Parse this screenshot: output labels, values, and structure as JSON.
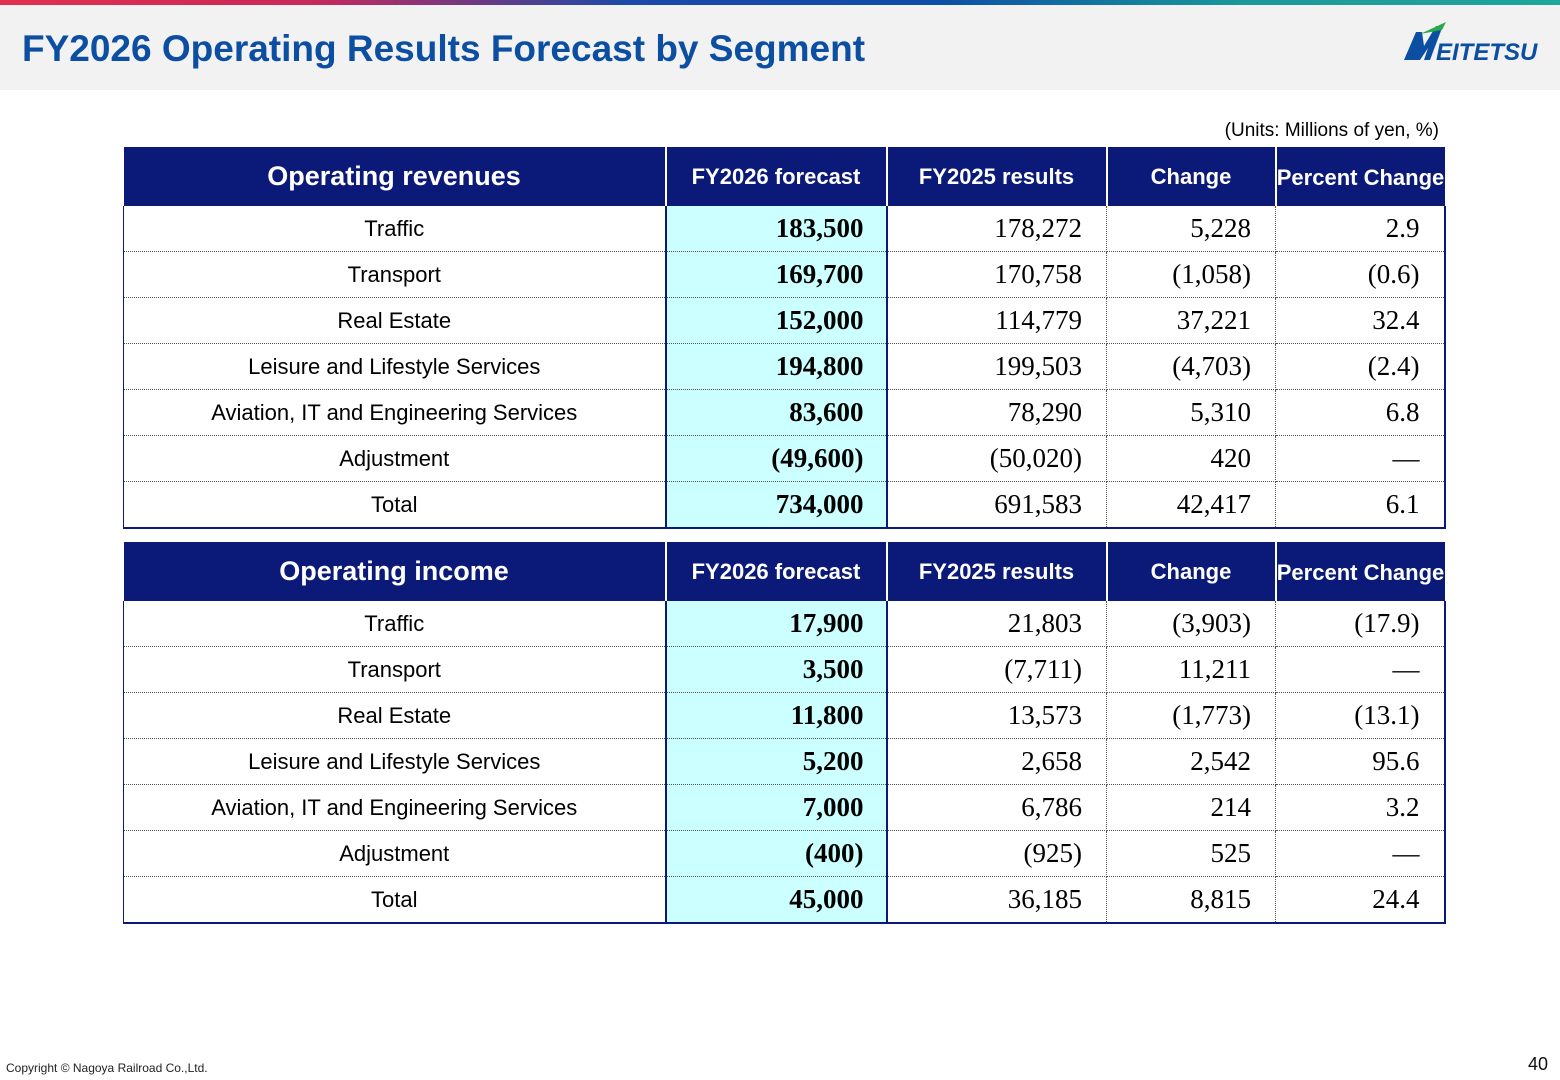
{
  "title": "FY2026 Operating Results Forecast by Segment",
  "logo_text": "MEITETSU",
  "units": "(Units: Millions of yen, %)",
  "columns": {
    "forecast": "FY2026 forecast",
    "results": "FY2025 results",
    "change": "Change",
    "pct": "Percent Change"
  },
  "revenues": {
    "header": "Operating revenues",
    "rows": [
      {
        "label": "Traffic",
        "forecast": "183,500",
        "results": "178,272",
        "change": "5,228",
        "pct": "2.9"
      },
      {
        "label": "Transport",
        "forecast": "169,700",
        "results": "170,758",
        "change": "(1,058)",
        "pct": "(0.6)"
      },
      {
        "label": "Real Estate",
        "forecast": "152,000",
        "results": "114,779",
        "change": "37,221",
        "pct": "32.4"
      },
      {
        "label": "Leisure and Lifestyle Services",
        "forecast": "194,800",
        "results": "199,503",
        "change": "(4,703)",
        "pct": "(2.4)"
      },
      {
        "label": "Aviation, IT and Engineering Services",
        "forecast": "83,600",
        "results": "78,290",
        "change": "5,310",
        "pct": "6.8"
      },
      {
        "label": "Adjustment",
        "forecast": "(49,600)",
        "results": "(50,020)",
        "change": "420",
        "pct": "—"
      },
      {
        "label": "Total",
        "forecast": "734,000",
        "results": "691,583",
        "change": "42,417",
        "pct": "6.1"
      }
    ]
  },
  "income": {
    "header": "Operating income",
    "rows": [
      {
        "label": "Traffic",
        "forecast": "17,900",
        "results": "21,803",
        "change": "(3,903)",
        "pct": "(17.9)"
      },
      {
        "label": "Transport",
        "forecast": "3,500",
        "results": "(7,711)",
        "change": "11,211",
        "pct": "—"
      },
      {
        "label": "Real Estate",
        "forecast": "11,800",
        "results": "13,573",
        "change": "(1,773)",
        "pct": "(13.1)"
      },
      {
        "label": "Leisure and Lifestyle Services",
        "forecast": "5,200",
        "results": "2,658",
        "change": "2,542",
        "pct": "95.6"
      },
      {
        "label": "Aviation, IT and Engineering Services",
        "forecast": "7,000",
        "results": "6,786",
        "change": "214",
        "pct": "3.2"
      },
      {
        "label": "Adjustment",
        "forecast": "(400)",
        "results": "(925)",
        "change": "525",
        "pct": "—"
      },
      {
        "label": "Total",
        "forecast": "45,000",
        "results": "36,185",
        "change": "8,815",
        "pct": "24.4"
      }
    ]
  },
  "footer": {
    "copyright": "Copyright © Nagoya Railroad Co.,Ltd.",
    "page_number": "40"
  },
  "colors": {
    "title_blue": "#0b4ea2",
    "header_navy": "#0b1a78",
    "forecast_fill": "#ccffff"
  }
}
